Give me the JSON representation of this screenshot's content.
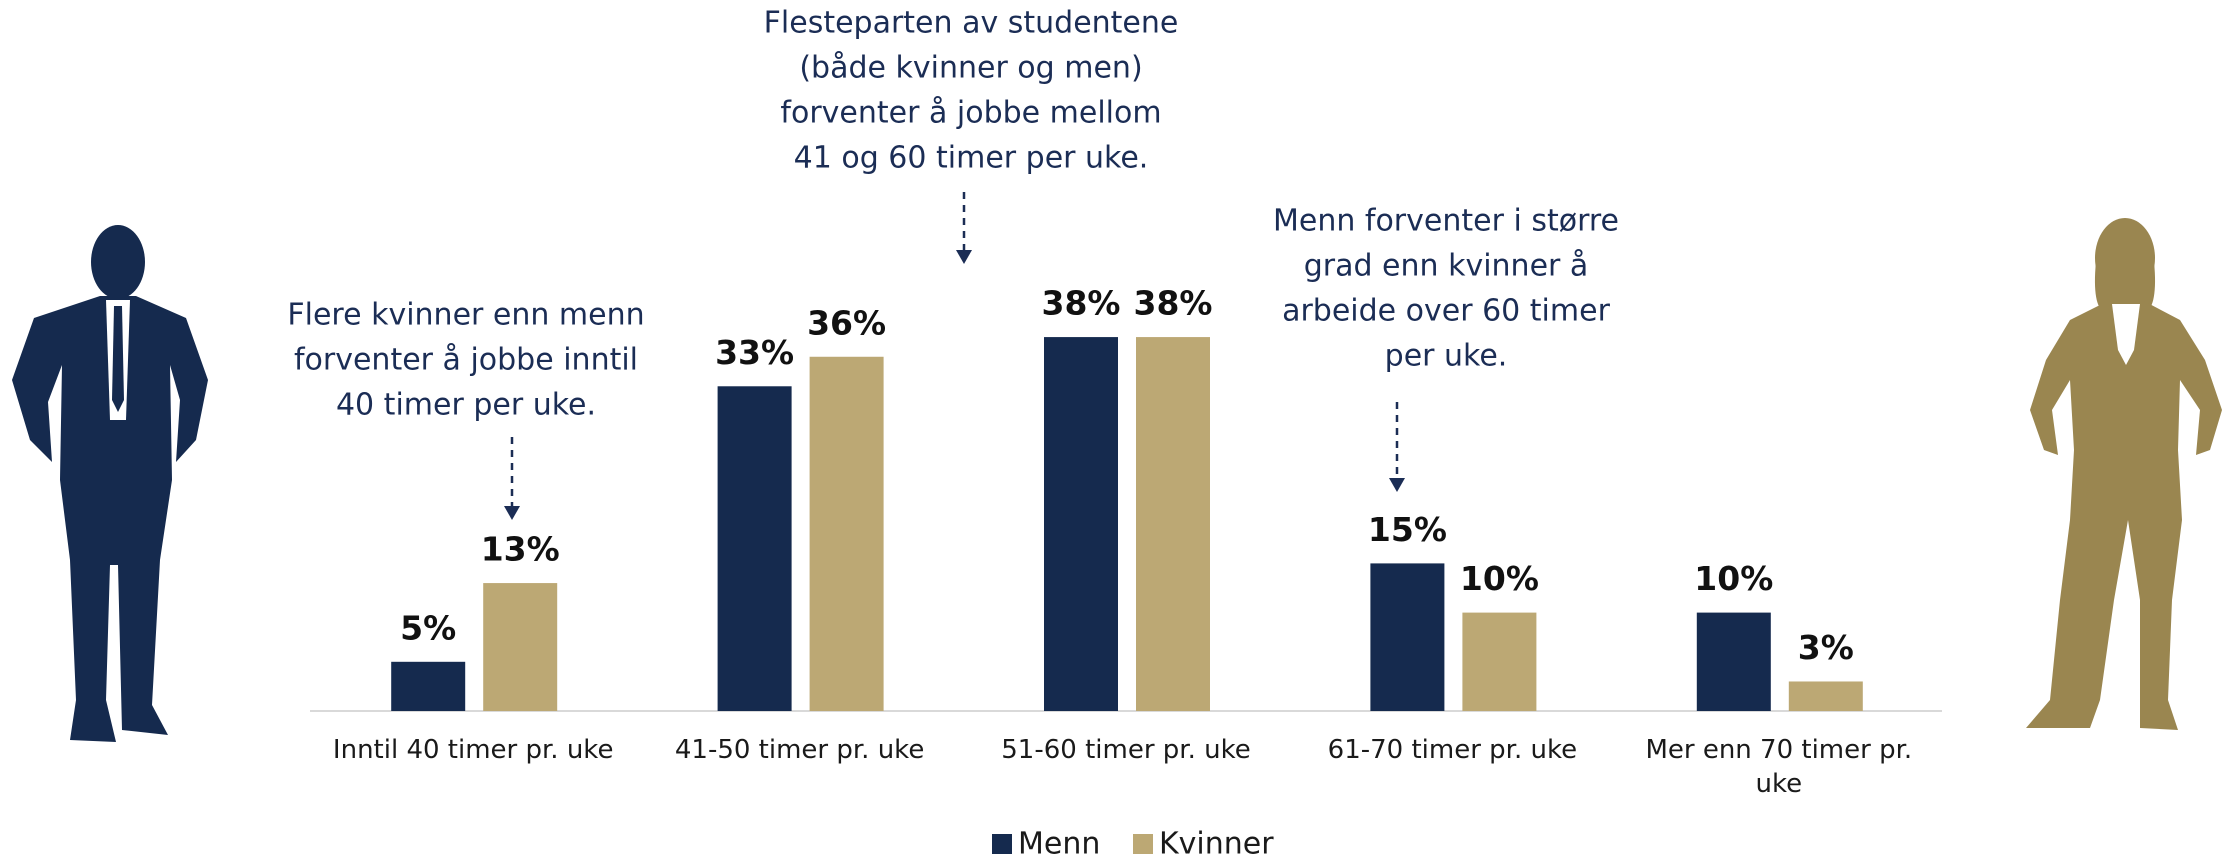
{
  "chart_data": {
    "type": "bar",
    "categories": [
      "Inntil 40 timer pr. uke",
      "41-50 timer pr. uke",
      "51-60 timer pr. uke",
      "61-70 timer pr. uke",
      "Mer enn 70 timer pr. uke"
    ],
    "series": [
      {
        "name": "Menn",
        "color": "#152a4e",
        "values": [
          5,
          33,
          38,
          15,
          10
        ],
        "value_labels": [
          "5%",
          "33%",
          "38%",
          "15%",
          "10%"
        ]
      },
      {
        "name": "Kvinner",
        "color": "#bca874",
        "values": [
          13,
          36,
          38,
          10,
          3
        ],
        "value_labels": [
          "13%",
          "36%",
          "38%",
          "10%",
          "3%"
        ]
      }
    ],
    "annotations": [
      {
        "lines": [
          "Flere kvinner enn menn",
          "forventer å jobbe inntil",
          "40 timer per uke."
        ]
      },
      {
        "lines": [
          "Flesteparten av studentene",
          "(både kvinner og men)",
          "forventer å jobbe mellom",
          "41 og 60 timer per uke."
        ]
      },
      {
        "lines": [
          "Menn forventer i større",
          "grad enn kvinner å",
          "arbeide over 60 timer",
          "per uke."
        ]
      }
    ]
  }
}
